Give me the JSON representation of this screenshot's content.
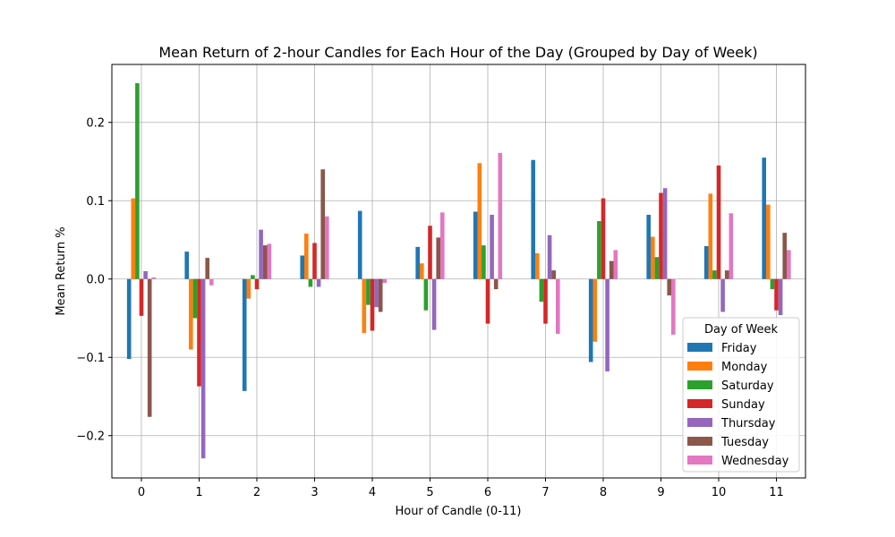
{
  "chart_data": {
    "type": "bar",
    "title": "Mean Return of 2-hour Candles for Each Hour of the Day (Grouped by Day of Week)",
    "xlabel": "Hour of Candle (0-11)",
    "ylabel": "Mean Return %",
    "categories": [
      "0",
      "1",
      "2",
      "3",
      "4",
      "5",
      "6",
      "7",
      "8",
      "9",
      "10",
      "11"
    ],
    "ylim": [
      -0.254,
      0.274
    ],
    "yticks": [
      -0.2,
      -0.1,
      0.0,
      0.1,
      0.2
    ],
    "ytick_labels": [
      "−0.2",
      "−0.1",
      "0.0",
      "0.1",
      "0.2"
    ],
    "grid": true,
    "legend": {
      "title": "Day of Week",
      "position": "lower-right"
    },
    "series": [
      {
        "name": "Friday",
        "color": "#1f77b4",
        "values": [
          -0.102,
          0.035,
          -0.143,
          0.03,
          0.087,
          0.041,
          0.086,
          0.152,
          -0.106,
          0.082,
          0.042,
          0.155
        ]
      },
      {
        "name": "Monday",
        "color": "#ff7f0e",
        "values": [
          0.103,
          -0.09,
          -0.025,
          0.058,
          -0.069,
          0.02,
          0.148,
          0.033,
          -0.08,
          0.054,
          0.109,
          0.095
        ]
      },
      {
        "name": "Saturday",
        "color": "#2ca02c",
        "values": [
          0.25,
          -0.05,
          0.005,
          -0.01,
          -0.033,
          -0.04,
          0.043,
          -0.029,
          0.074,
          0.028,
          0.011,
          -0.013
        ]
      },
      {
        "name": "Sunday",
        "color": "#d62728",
        "values": [
          -0.047,
          -0.137,
          -0.013,
          0.046,
          -0.066,
          0.068,
          -0.057,
          -0.057,
          0.103,
          0.11,
          0.145,
          -0.04
        ]
      },
      {
        "name": "Thursday",
        "color": "#9467bd",
        "values": [
          0.01,
          -0.229,
          0.063,
          -0.01,
          -0.036,
          -0.065,
          0.082,
          0.056,
          -0.118,
          0.116,
          -0.042,
          -0.046
        ]
      },
      {
        "name": "Tuesday",
        "color": "#8c564b",
        "values": [
          -0.176,
          0.027,
          0.043,
          0.14,
          -0.042,
          0.053,
          -0.013,
          0.011,
          0.023,
          -0.021,
          0.011,
          0.059
        ]
      },
      {
        "name": "Wednesday",
        "color": "#e377c2",
        "values": [
          0.002,
          -0.008,
          0.045,
          0.08,
          -0.005,
          0.085,
          0.161,
          -0.07,
          0.037,
          -0.071,
          0.084,
          0.037
        ]
      }
    ]
  }
}
